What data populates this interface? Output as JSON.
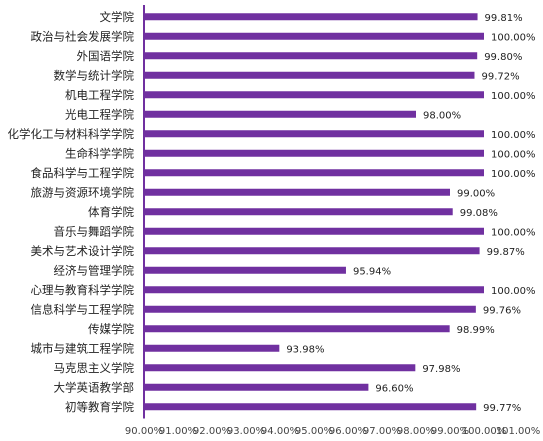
{
  "chart_data": {
    "type": "bar",
    "orientation": "horizontal",
    "categories": [
      "文学院",
      "政治与社会发展学院",
      "外国语学院",
      "数学与统计学院",
      "机电工程学院",
      "光电工程学院",
      "化学化工与材料科学学院",
      "生命科学学院",
      "食品科学与工程学院",
      "旅游与资源环境学院",
      "体育学院",
      "音乐与舞蹈学院",
      "美术与艺术设计学院",
      "经济与管理学院",
      "心理与教育科学学院",
      "信息科学与工程学院",
      "传媒学院",
      "城市与建筑工程学院",
      "马克思主义学院",
      "大学英语教学部",
      "初等教育学院"
    ],
    "values": [
      99.81,
      100.0,
      99.8,
      99.72,
      100.0,
      98.0,
      100.0,
      100.0,
      100.0,
      99.0,
      99.08,
      100.0,
      99.87,
      95.94,
      100.0,
      99.76,
      98.99,
      93.98,
      97.98,
      96.6,
      99.77
    ],
    "value_labels": [
      "99.81%",
      "100.00%",
      "99.80%",
      "99.72%",
      "100.00%",
      "98.00%",
      "100.00%",
      "100.00%",
      "100.00%",
      "99.00%",
      "99.08%",
      "100.00%",
      "99.87%",
      "95.94%",
      "100.00%",
      "99.76%",
      "98.99%",
      "93.98%",
      "97.98%",
      "96.60%",
      "99.77%"
    ],
    "xlim": [
      90,
      101
    ],
    "x_ticks": [
      90,
      91,
      92,
      93,
      94,
      95,
      96,
      97,
      98,
      99,
      100,
      101
    ],
    "x_tick_labels": [
      "90.00%",
      "91.00%",
      "92.00%",
      "93.00%",
      "94.00%",
      "95.00%",
      "96.00%",
      "97.00%",
      "98.00%",
      "99.00%",
      "100.00%",
      "101.00%"
    ],
    "bar_color": "#7030a0",
    "axis_color": "#7030a0",
    "grid": false,
    "title": "",
    "xlabel": "",
    "ylabel": ""
  }
}
